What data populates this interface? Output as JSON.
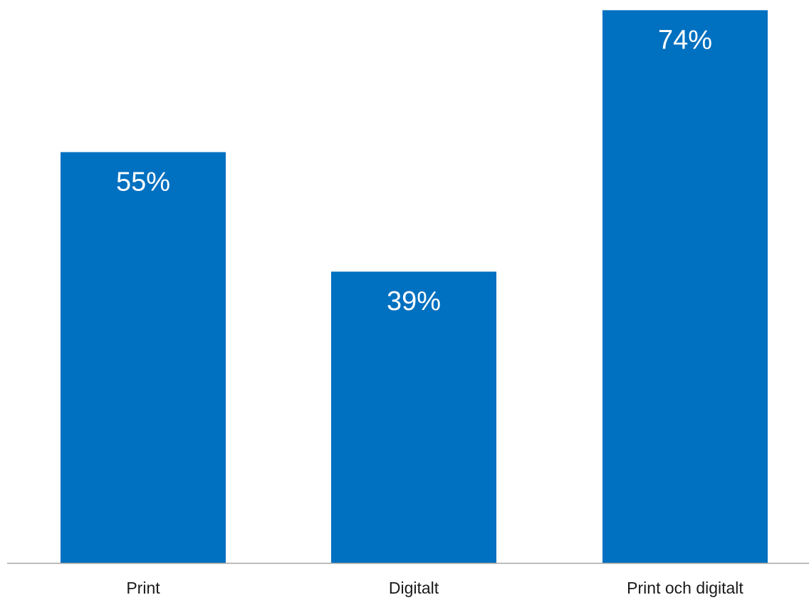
{
  "chart_data": {
    "type": "bar",
    "categories": [
      "Print",
      "Digitalt",
      "Print och digitalt"
    ],
    "values": [
      55,
      39,
      74
    ],
    "value_labels": [
      "55%",
      "39%",
      "74%"
    ],
    "title": "",
    "xlabel": "",
    "ylabel": "",
    "ylim": [
      0,
      74.7
    ],
    "unit": "%",
    "grid": false,
    "legend": "none",
    "colors": {
      "bar": "#0070c0",
      "value_label": "#ffffff",
      "axis": "#a6a6a6",
      "category_label": "#1a1a1a"
    }
  }
}
